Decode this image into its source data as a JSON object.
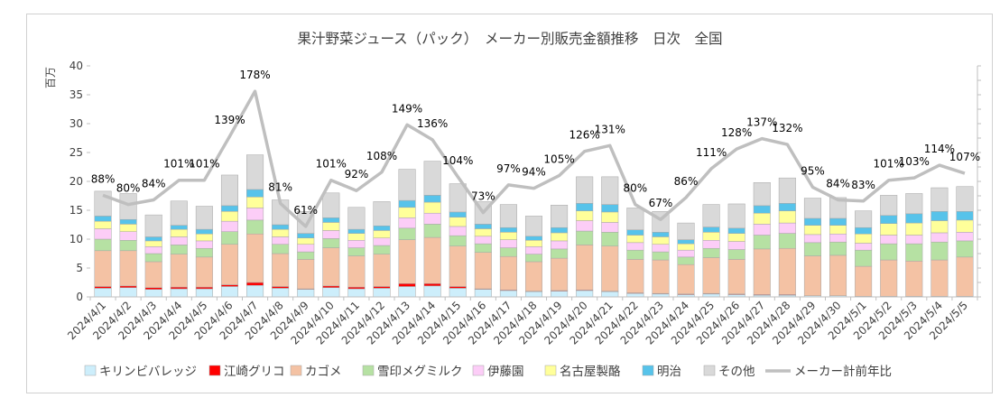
{
  "chart_data": {
    "type": "bar",
    "title": "果汁野菜ジュース（パック）　メーカー別販売金額推移　日次　全国",
    "ylabel": "百万",
    "ylim": [
      0,
      40
    ],
    "yticks": [
      0,
      5,
      10,
      15,
      20,
      25,
      30,
      35,
      40
    ],
    "grid": false,
    "legend_position": "bottom",
    "categories": [
      "2024/4/1",
      "2024/4/2",
      "2024/4/3",
      "2024/4/4",
      "2024/4/5",
      "2024/4/6",
      "2024/4/7",
      "2024/4/8",
      "2024/4/9",
      "2024/4/10",
      "2024/4/11",
      "2024/4/12",
      "2024/4/13",
      "2024/4/14",
      "2024/4/15",
      "2024/4/16",
      "2024/4/17",
      "2024/4/18",
      "2024/4/19",
      "2024/4/20",
      "2024/4/21",
      "2024/4/22",
      "2024/4/23",
      "2024/4/24",
      "2024/4/25",
      "2024/4/26",
      "2024/4/27",
      "2024/4/28",
      "2024/4/29",
      "2024/4/30",
      "2024/5/1",
      "2024/5/2",
      "2024/5/3",
      "2024/5/4",
      "2024/5/5"
    ],
    "series": [
      {
        "name": "キリンビバレッジ",
        "color": "#cdeefb",
        "values": [
          1.5,
          1.6,
          1.3,
          1.4,
          1.4,
          1.8,
          2.0,
          1.5,
          1.3,
          1.6,
          1.4,
          1.5,
          1.8,
          1.9,
          1.5,
          1.3,
          1.1,
          0.9,
          1.0,
          1.1,
          0.9,
          0.6,
          0.5,
          0.4,
          0.5,
          0.4,
          0.3,
          0.3,
          0.2,
          0.2,
          0.1,
          0.1,
          0.1,
          0.1,
          0.1
        ]
      },
      {
        "name": "江崎グリコ",
        "color": "#ff0000",
        "values": [
          0.3,
          0.3,
          0.3,
          0.3,
          0.3,
          0.3,
          0.5,
          0.3,
          0.1,
          0.3,
          0.3,
          0.3,
          0.5,
          0.4,
          0.3,
          0.1,
          0.1,
          0.1,
          0.1,
          0.1,
          0.1,
          0.1,
          0.1,
          0.1,
          0.1,
          0.1,
          0.1,
          0.1,
          0,
          0,
          0,
          0,
          0,
          0,
          0
        ]
      },
      {
        "name": "カゴメ",
        "color": "#f4c2a4",
        "values": [
          6.2,
          6.1,
          4.5,
          5.7,
          5.2,
          7.0,
          8.4,
          5.7,
          5.1,
          6.6,
          5.4,
          5.6,
          7.6,
          8.0,
          7.0,
          6.3,
          5.8,
          5.1,
          5.6,
          7.8,
          7.8,
          5.8,
          5.8,
          5.1,
          6.2,
          6.0,
          7.9,
          8.0,
          6.9,
          7.0,
          5.2,
          6.3,
          6.1,
          6.3,
          6.8
        ]
      },
      {
        "name": "雪印メグミルク",
        "color": "#b6e1a3",
        "values": [
          2.0,
          1.8,
          1.4,
          1.6,
          1.5,
          2.2,
          2.4,
          1.6,
          1.3,
          1.6,
          1.4,
          1.5,
          2.0,
          2.3,
          1.8,
          1.5,
          1.5,
          1.3,
          1.6,
          2.4,
          2.4,
          1.6,
          1.4,
          1.3,
          1.6,
          1.7,
          2.4,
          2.6,
          2.3,
          2.3,
          2.8,
          2.8,
          3.0,
          3.1,
          2.8
        ]
      },
      {
        "name": "伊藤園",
        "color": "#fccdf7",
        "values": [
          1.8,
          1.5,
          1.2,
          1.4,
          1.3,
          1.8,
          2.1,
          1.3,
          1.3,
          1.4,
          1.3,
          1.3,
          1.8,
          1.9,
          1.6,
          1.3,
          1.4,
          1.3,
          1.4,
          1.8,
          1.7,
          1.3,
          1.3,
          1.2,
          1.4,
          1.4,
          1.9,
          1.8,
          1.4,
          1.4,
          1.2,
          1.5,
          1.5,
          1.6,
          1.5
        ]
      },
      {
        "name": "名古屋製酪",
        "color": "#ffff9a",
        "values": [
          1.3,
          1.3,
          1.0,
          1.3,
          1.2,
          1.7,
          1.9,
          1.3,
          1.1,
          1.4,
          1.2,
          1.3,
          1.8,
          1.9,
          1.6,
          1.3,
          1.3,
          1.1,
          1.4,
          1.7,
          1.8,
          1.3,
          1.3,
          1.1,
          1.4,
          1.4,
          1.9,
          2.1,
          1.6,
          1.5,
          1.6,
          2.0,
          2.1,
          2.1,
          2.1
        ]
      },
      {
        "name": "明治",
        "color": "#57c3ea",
        "values": [
          0.9,
          0.8,
          0.7,
          0.7,
          0.8,
          1.0,
          1.3,
          0.8,
          0.8,
          0.8,
          0.7,
          0.8,
          1.2,
          1.2,
          0.9,
          0.8,
          0.8,
          0.7,
          0.9,
          1.3,
          1.3,
          0.9,
          0.8,
          0.7,
          0.9,
          0.9,
          1.3,
          1.3,
          1.2,
          1.2,
          1.1,
          1.4,
          1.6,
          1.6,
          1.5
        ]
      },
      {
        "name": "その他",
        "color": "#d9d9d9",
        "values": [
          4.3,
          4.5,
          3.8,
          4.2,
          4.0,
          5.3,
          6.0,
          4.3,
          3.8,
          4.3,
          3.8,
          4.2,
          5.4,
          5.9,
          4.9,
          3.9,
          4.0,
          3.5,
          3.9,
          4.6,
          4.8,
          3.8,
          3.6,
          2.9,
          3.9,
          4.2,
          4.0,
          4.4,
          3.5,
          3.6,
          2.9,
          3.5,
          3.5,
          4.1,
          4.3
        ]
      }
    ],
    "line_series": {
      "name": "メーカー計前年比",
      "color": "#bfbfbf",
      "labels": [
        "88%",
        "80%",
        "84%",
        "101%",
        "101%",
        "139%",
        "178%",
        "81%",
        "61%",
        "101%",
        "92%",
        "108%",
        "149%",
        "136%",
        "104%",
        "73%",
        "97%",
        "94%",
        "105%",
        "126%",
        "131%",
        "80%",
        "67%",
        "86%",
        "111%",
        "128%",
        "137%",
        "132%",
        "95%",
        "84%",
        "83%",
        "101%",
        "103%",
        "114%",
        "107%"
      ],
      "values": [
        88,
        80,
        84,
        101,
        101,
        139,
        178,
        81,
        61,
        101,
        92,
        108,
        149,
        136,
        104,
        73,
        97,
        94,
        105,
        126,
        131,
        80,
        67,
        86,
        111,
        128,
        137,
        132,
        95,
        84,
        83,
        101,
        103,
        114,
        107
      ]
    }
  }
}
